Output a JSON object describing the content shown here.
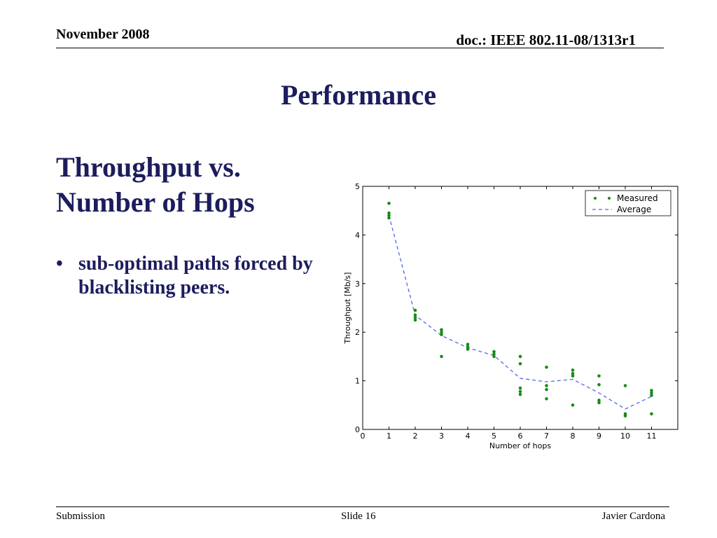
{
  "header": {
    "date": "November 2008",
    "doc_id": "doc.: IEEE 802.11-08/1313r1"
  },
  "slide": {
    "title": "Performance",
    "subtitle_line1": "Throughput vs.",
    "subtitle_line2": "Number of Hops",
    "bullet_marker": "•",
    "bullet_text": "sub-optimal paths forced by blacklisting peers."
  },
  "footer": {
    "left": "Submission",
    "center": "Slide 16",
    "right": "Javier Cardona"
  },
  "chart_data": {
    "type": "scatter",
    "xlabel": "Number of hops",
    "ylabel": "Throughput [Mb/s]",
    "xlim": [
      0,
      12
    ],
    "ylim": [
      0,
      5
    ],
    "x_ticks": [
      "0",
      "1",
      "2",
      "3",
      "4",
      "5",
      "6",
      "7",
      "8",
      "9",
      "10",
      "11"
    ],
    "y_ticks": [
      "0",
      "1",
      "2",
      "3",
      "4",
      "5"
    ],
    "grid": false,
    "legend_position": "top-right",
    "series": [
      {
        "name": "Measured",
        "style": "dots",
        "color": "#1a8a1a",
        "points": [
          [
            1,
            4.65
          ],
          [
            1,
            4.45
          ],
          [
            1,
            4.4
          ],
          [
            1,
            4.35
          ],
          [
            2,
            2.45
          ],
          [
            2,
            2.35
          ],
          [
            2,
            2.3
          ],
          [
            2,
            2.25
          ],
          [
            3,
            2.05
          ],
          [
            3,
            2.0
          ],
          [
            3,
            1.95
          ],
          [
            3,
            1.5
          ],
          [
            4,
            1.75
          ],
          [
            4,
            1.7
          ],
          [
            4,
            1.65
          ],
          [
            5,
            1.6
          ],
          [
            5,
            1.55
          ],
          [
            5,
            1.5
          ],
          [
            6,
            1.5
          ],
          [
            6,
            1.35
          ],
          [
            6,
            0.85
          ],
          [
            6,
            0.78
          ],
          [
            6,
            0.72
          ],
          [
            7,
            1.28
          ],
          [
            7,
            0.9
          ],
          [
            7,
            0.82
          ],
          [
            7,
            0.63
          ],
          [
            8,
            1.22
          ],
          [
            8,
            1.15
          ],
          [
            8,
            1.1
          ],
          [
            8,
            0.5
          ],
          [
            9,
            1.1
          ],
          [
            9,
            0.92
          ],
          [
            9,
            0.6
          ],
          [
            9,
            0.55
          ],
          [
            10,
            0.9
          ],
          [
            10,
            0.32
          ],
          [
            10,
            0.28
          ],
          [
            11,
            0.8
          ],
          [
            11,
            0.75
          ],
          [
            11,
            0.7
          ],
          [
            11,
            0.32
          ]
        ]
      },
      {
        "name": "Average",
        "style": "dashed-line",
        "color": "#5566ee",
        "x": [
          1,
          2,
          3,
          4,
          5,
          6,
          7,
          8,
          9,
          10,
          11
        ],
        "y": [
          4.4,
          2.35,
          1.93,
          1.68,
          1.52,
          1.05,
          0.98,
          1.03,
          0.75,
          0.42,
          0.68
        ]
      }
    ]
  }
}
